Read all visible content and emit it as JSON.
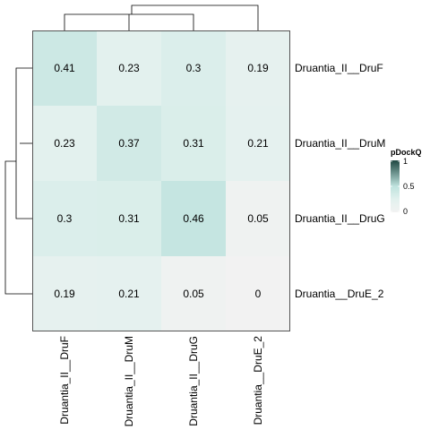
{
  "chart_data": {
    "type": "heatmap",
    "rows": [
      "Druantia_II__DruF",
      "Druantia_II__DruM",
      "Druantia_II__DruG",
      "Druantia__DruE_2"
    ],
    "columns": [
      "Druantia_II__DruF",
      "Druantia_II__DruM",
      "Druantia_II__DruG",
      "Druantia__DruE_2"
    ],
    "values": [
      [
        0.41,
        0.23,
        0.3,
        0.19
      ],
      [
        0.23,
        0.37,
        0.31,
        0.21
      ],
      [
        0.3,
        0.31,
        0.46,
        0.05
      ],
      [
        0.19,
        0.21,
        0.05,
        0
      ]
    ],
    "value_labels": [
      [
        "0.41",
        "0.23",
        "0.3",
        "0.19"
      ],
      [
        "0.23",
        "0.37",
        "0.31",
        "0.21"
      ],
      [
        "0.3",
        "0.31",
        "0.46",
        "0.05"
      ],
      [
        "0.19",
        "0.21",
        "0.05",
        "0"
      ]
    ],
    "legend": {
      "title": "pDockQ",
      "ticks": [
        "1",
        "0.5",
        "0"
      ],
      "tick_values": [
        1,
        0.5,
        0
      ],
      "placement": "right"
    },
    "color_scale": {
      "domain": [
        0,
        0.25,
        0.5,
        1
      ],
      "colors": [
        "#f2f2f2",
        "#e2f1ee",
        "#bfe3de",
        "#1e4741"
      ]
    },
    "dendrograms": {
      "rows": true,
      "columns": true
    }
  }
}
